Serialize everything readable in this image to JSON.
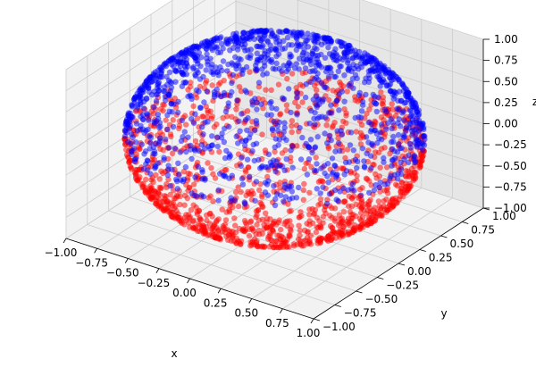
{
  "chart_data": {
    "type": "scatter",
    "projection": "3d",
    "shape": "unit sphere surface",
    "xlabel": "x",
    "ylabel": "y",
    "zlabel": "z",
    "xlim": [
      -1.0,
      1.0
    ],
    "ylim": [
      -1.0,
      1.0
    ],
    "zlim": [
      -1.0,
      1.0
    ],
    "xticks": [
      "−1.00",
      "−0.75",
      "−0.50",
      "−0.25",
      "0.00",
      "0.25",
      "0.50",
      "0.75",
      "1.00"
    ],
    "yticks": [
      "−1.00",
      "−0.75",
      "−0.50",
      "−0.25",
      "0.00",
      "0.25",
      "0.50",
      "0.75",
      "1.00"
    ],
    "zticks": [
      "−1.00",
      "−0.75",
      "−0.50",
      "−0.25",
      "0.00",
      "0.25",
      "0.50",
      "0.75",
      "1.00"
    ],
    "grid": true,
    "series": [
      {
        "color": "#ff0000",
        "z_range": [
          -1.0,
          0.0
        ],
        "marker_opacity": 0.5
      },
      {
        "color": "#0000ff",
        "z_range": [
          0.0,
          1.0
        ],
        "marker_opacity": 0.5
      }
    ]
  }
}
